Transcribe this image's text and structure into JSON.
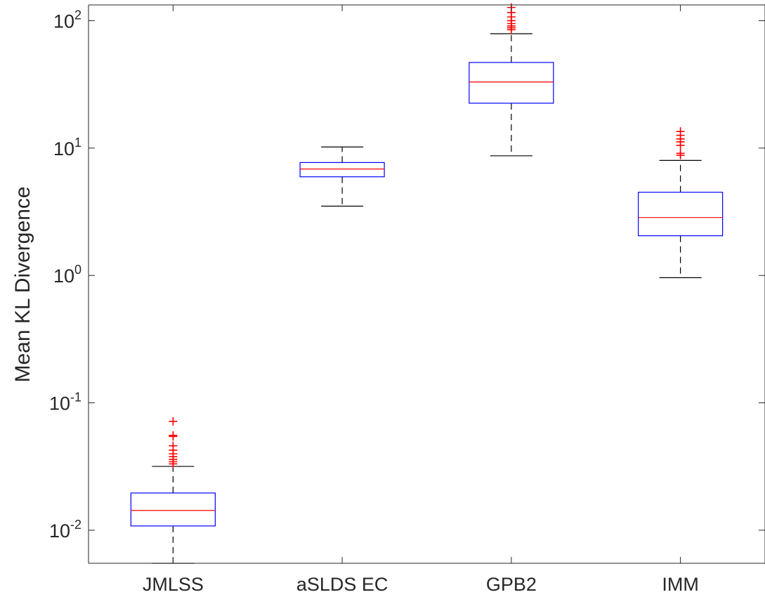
{
  "chart_data": {
    "type": "box",
    "title": "",
    "xlabel": "",
    "ylabel": "Mean KL Divergence",
    "yscale": "log",
    "ylim": [
      0.0055,
      133
    ],
    "yticks": [
      {
        "value": 0.01,
        "base": "10",
        "exp": "-2"
      },
      {
        "value": 0.1,
        "base": "10",
        "exp": "-1"
      },
      {
        "value": 1,
        "base": "10",
        "exp": "0"
      },
      {
        "value": 10,
        "base": "10",
        "exp": "1"
      },
      {
        "value": 100,
        "base": "10",
        "exp": "2"
      }
    ],
    "categories": [
      "JMLSS",
      "aSLDS EC",
      "GPB2",
      "IMM"
    ],
    "boxes": [
      {
        "name": "JMLSS",
        "whisker_low": 0.0055,
        "q1": 0.0108,
        "median": 0.0143,
        "q3": 0.0196,
        "whisker_high": 0.0317,
        "outliers": [
          0.0332,
          0.0345,
          0.036,
          0.0378,
          0.0398,
          0.0425,
          0.046,
          0.0545,
          0.0555,
          0.0715
        ]
      },
      {
        "name": "aSLDS EC",
        "whisker_low": 3.5,
        "q1": 5.95,
        "median": 6.85,
        "q3": 7.7,
        "whisker_high": 10.2,
        "outliers": []
      },
      {
        "name": "GPB2",
        "whisker_low": 8.7,
        "q1": 22.5,
        "median": 33,
        "q3": 47,
        "whisker_high": 79,
        "outliers": [
          85,
          88,
          91,
          95,
          100,
          107,
          116,
          127
        ]
      },
      {
        "name": "IMM",
        "whisker_low": 0.96,
        "q1": 2.05,
        "median": 2.85,
        "q3": 4.5,
        "whisker_high": 8,
        "outliers": [
          8.8,
          9.1,
          10.5,
          11.2,
          11.8,
          12.6,
          13.5
        ]
      }
    ],
    "colors": {
      "box": "#0000ff",
      "median": "#ff0000",
      "whisker": "#000000",
      "outlier": "#ff0000",
      "axis": "#262626"
    }
  }
}
